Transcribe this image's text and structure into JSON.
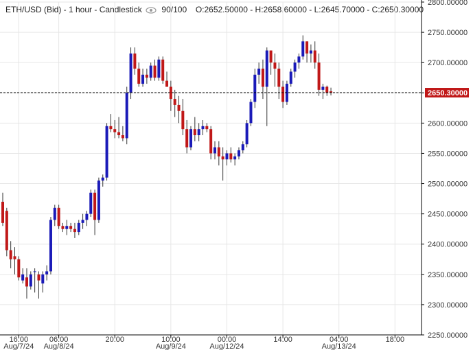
{
  "header": {
    "symbol": "ETH/USD (Bid) - 1 hour - Candlestick",
    "counter": "90/100",
    "ohlc": "O:2652.50000 - H:2658.60000 - L:2645.70000 - C:2650.30000"
  },
  "colors": {
    "up": "#1a1ab8",
    "down": "#c01818",
    "grid": "#e6e6e6",
    "axis": "#000000",
    "price_tag": "#c01818"
  },
  "chart_data": {
    "type": "candlestick",
    "title": "ETH/USD (Bid) - 1 hour - Candlestick",
    "ylim": [
      2250,
      2800
    ],
    "y_ticks": [
      "2250.00000",
      "2300.00000",
      "2350.00000",
      "2400.00000",
      "2450.00000",
      "2500.00000",
      "2550.00000",
      "2600.00000",
      "2650.00000",
      "2700.00000",
      "2750.00000",
      "2800.00000"
    ],
    "x_ticks": [
      {
        "index": 4,
        "label": "16:00",
        "sub": "Aug/7/24"
      },
      {
        "index": 14,
        "label": "06:00",
        "sub": "Aug/8/24"
      },
      {
        "index": 28,
        "label": "20:00",
        "sub": ""
      },
      {
        "index": 42,
        "label": "10:00",
        "sub": "Aug/9/24"
      },
      {
        "index": 56,
        "label": "00:00",
        "sub": "Aug/12/24"
      },
      {
        "index": 70,
        "label": "14:00",
        "sub": ""
      },
      {
        "index": 84,
        "label": "04:00",
        "sub": "Aug/13/24"
      },
      {
        "index": 98,
        "label": "18:00",
        "sub": ""
      }
    ],
    "current_price": "2650.30000",
    "current_value": 2650.3,
    "candles": [
      [
        2470,
        2485,
        2430,
        2435
      ],
      [
        2455,
        2460,
        2380,
        2390
      ],
      [
        2390,
        2405,
        2360,
        2375
      ],
      [
        2380,
        2395,
        2350,
        2375
      ],
      [
        2375,
        2380,
        2340,
        2345
      ],
      [
        2340,
        2360,
        2335,
        2350
      ],
      [
        2345,
        2360,
        2310,
        2330
      ],
      [
        2330,
        2355,
        2325,
        2350
      ],
      [
        2355,
        2360,
        2320,
        2355
      ],
      [
        2350,
        2355,
        2310,
        2340
      ],
      [
        2335,
        2355,
        2320,
        2350
      ],
      [
        2350,
        2365,
        2340,
        2355
      ],
      [
        2355,
        2445,
        2350,
        2440
      ],
      [
        2440,
        2465,
        2430,
        2460
      ],
      [
        2460,
        2465,
        2425,
        2430
      ],
      [
        2430,
        2435,
        2420,
        2425
      ],
      [
        2425,
        2440,
        2415,
        2430
      ],
      [
        2430,
        2435,
        2420,
        2425
      ],
      [
        2425,
        2435,
        2410,
        2420
      ],
      [
        2420,
        2440,
        2415,
        2435
      ],
      [
        2435,
        2450,
        2425,
        2440
      ],
      [
        2440,
        2455,
        2430,
        2450
      ],
      [
        2450,
        2490,
        2445,
        2485
      ],
      [
        2485,
        2490,
        2415,
        2440
      ],
      [
        2440,
        2510,
        2435,
        2505
      ],
      [
        2505,
        2515,
        2495,
        2510
      ],
      [
        2510,
        2600,
        2505,
        2595
      ],
      [
        2595,
        2615,
        2585,
        2590
      ],
      [
        2590,
        2605,
        2575,
        2585
      ],
      [
        2585,
        2610,
        2575,
        2580
      ],
      [
        2580,
        2595,
        2570,
        2575
      ],
      [
        2575,
        2660,
        2565,
        2650
      ],
      [
        2650,
        2725,
        2640,
        2715
      ],
      [
        2715,
        2725,
        2680,
        2690
      ],
      [
        2690,
        2700,
        2660,
        2665
      ],
      [
        2665,
        2690,
        2660,
        2680
      ],
      [
        2680,
        2690,
        2665,
        2675
      ],
      [
        2675,
        2700,
        2670,
        2695
      ],
      [
        2695,
        2705,
        2670,
        2675
      ],
      [
        2675,
        2710,
        2670,
        2705
      ],
      [
        2705,
        2710,
        2665,
        2670
      ],
      [
        2670,
        2685,
        2660,
        2660
      ],
      [
        2660,
        2670,
        2620,
        2640
      ],
      [
        2640,
        2655,
        2610,
        2630
      ],
      [
        2630,
        2645,
        2600,
        2620
      ],
      [
        2620,
        2640,
        2580,
        2590
      ],
      [
        2590,
        2605,
        2550,
        2560
      ],
      [
        2560,
        2595,
        2555,
        2590
      ],
      [
        2590,
        2610,
        2570,
        2580
      ],
      [
        2580,
        2600,
        2570,
        2590
      ],
      [
        2590,
        2605,
        2580,
        2595
      ],
      [
        2595,
        2600,
        2585,
        2590
      ],
      [
        2590,
        2595,
        2540,
        2550
      ],
      [
        2550,
        2570,
        2540,
        2560
      ],
      [
        2560,
        2570,
        2530,
        2545
      ],
      [
        2545,
        2560,
        2505,
        2540
      ],
      [
        2540,
        2555,
        2530,
        2550
      ],
      [
        2550,
        2560,
        2535,
        2540
      ],
      [
        2540,
        2550,
        2530,
        2545
      ],
      [
        2545,
        2560,
        2540,
        2555
      ],
      [
        2555,
        2570,
        2550,
        2565
      ],
      [
        2565,
        2605,
        2560,
        2600
      ],
      [
        2600,
        2640,
        2595,
        2635
      ],
      [
        2635,
        2690,
        2625,
        2680
      ],
      [
        2680,
        2700,
        2665,
        2690
      ],
      [
        2690,
        2705,
        2640,
        2660
      ],
      [
        2660,
        2725,
        2595,
        2720
      ],
      [
        2720,
        2720,
        2680,
        2700
      ],
      [
        2700,
        2715,
        2660,
        2690
      ],
      [
        2690,
        2700,
        2640,
        2660
      ],
      [
        2660,
        2670,
        2625,
        2635
      ],
      [
        2635,
        2670,
        2630,
        2665
      ],
      [
        2665,
        2690,
        2660,
        2685
      ],
      [
        2685,
        2705,
        2675,
        2700
      ],
      [
        2700,
        2715,
        2690,
        2710
      ],
      [
        2710,
        2745,
        2705,
        2735
      ],
      [
        2735,
        2735,
        2700,
        2715
      ],
      [
        2715,
        2730,
        2700,
        2720
      ],
      [
        2720,
        2735,
        2690,
        2700
      ],
      [
        2700,
        2715,
        2645,
        2655
      ],
      [
        2655,
        2665,
        2640,
        2660
      ],
      [
        2660,
        2662,
        2645,
        2650
      ],
      [
        2652.5,
        2658.6,
        2645.7,
        2650.3
      ]
    ]
  }
}
